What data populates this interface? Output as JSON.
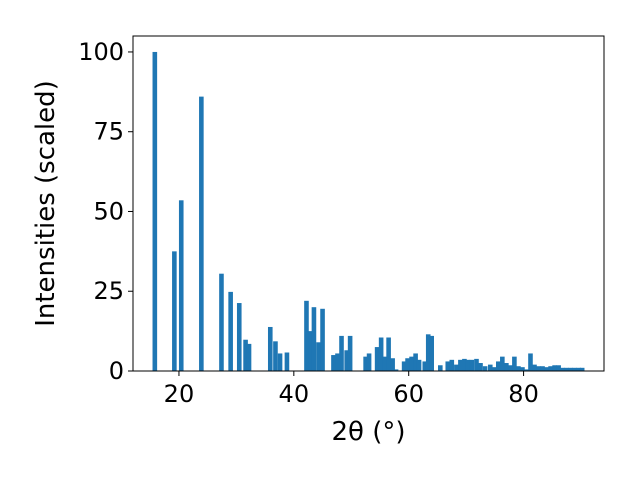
{
  "chart_data": {
    "type": "bar",
    "title": "",
    "xlabel": "2θ (°)",
    "ylabel": "Intensities (scaled)",
    "xlim": [
      12,
      94
    ],
    "ylim": [
      0,
      105
    ],
    "xticks": [
      20,
      40,
      60,
      80
    ],
    "yticks": [
      0,
      25,
      50,
      75,
      100
    ],
    "bar_width": 0.8,
    "grid": false,
    "color": "#1f77b4",
    "x": [
      15.8,
      19.2,
      20.4,
      23.9,
      27.4,
      29.0,
      30.5,
      31.6,
      32.2,
      35.9,
      36.8,
      37.6,
      38.8,
      42.2,
      42.9,
      43.5,
      44.3,
      45.0,
      46.9,
      47.6,
      48.3,
      49.2,
      49.8,
      52.5,
      53.1,
      54.5,
      55.2,
      55.8,
      56.5,
      57.2,
      57.8,
      59.2,
      59.8,
      60.5,
      61.2,
      61.8,
      62.8,
      63.4,
      64.0,
      65.5,
      66.8,
      67.5,
      68.3,
      69.0,
      69.7,
      70.3,
      71.0,
      71.8,
      72.5,
      73.3,
      74.2,
      74.9,
      75.6,
      76.3,
      77.0,
      77.7,
      78.4,
      79.1,
      79.8,
      80.5,
      81.2,
      81.9,
      82.6,
      83.3,
      84.0,
      84.7,
      85.4,
      86.1,
      86.8,
      87.5,
      88.2,
      88.9,
      89.6,
      90.2
    ],
    "values": [
      100,
      37.5,
      53.5,
      86,
      30.5,
      24.8,
      21.3,
      9.8,
      8.5,
      13.8,
      9.3,
      5.5,
      5.8,
      22,
      12.5,
      20,
      9,
      19.5,
      5,
      5.5,
      11,
      6.5,
      11,
      4.5,
      5.5,
      7.5,
      10.5,
      4.5,
      10.5,
      4,
      0.5,
      3,
      4,
      4.5,
      5.5,
      3.5,
      3,
      11.5,
      11,
      1.8,
      3,
      3.5,
      2,
      3.5,
      3.8,
      3.5,
      3.5,
      3.8,
      2.5,
      1.5,
      2,
      1.2,
      3,
      4.5,
      2.5,
      1.8,
      4.5,
      1.5,
      1.2,
      0.5,
      5.5,
      2,
      1.5,
      1.5,
      1.2,
      1.5,
      1.8,
      1.8,
      1,
      1,
      1,
      1,
      1,
      1
    ]
  }
}
